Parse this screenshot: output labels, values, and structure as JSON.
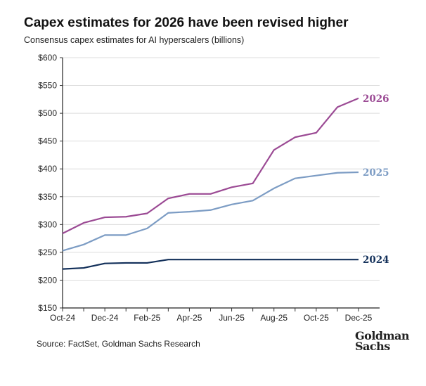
{
  "title": "Capex estimates for 2026 have been revised higher",
  "subtitle": "Consensus capex estimates for AI hyperscalers (billions)",
  "source": "Source: FactSet, Goldman Sachs Research",
  "logo": {
    "line1": "Goldman",
    "line2": "Sachs"
  },
  "chart_data": {
    "type": "line",
    "title": "Capex estimates for 2026 have been revised higher",
    "ylabel": "Consensus capex estimates for AI hyperscalers (billions)",
    "ylim": [
      150,
      600
    ],
    "yticks": [
      150,
      200,
      250,
      300,
      350,
      400,
      450,
      500,
      550,
      600
    ],
    "ytick_labels": [
      "$150",
      "$200",
      "$250",
      "$300",
      "$350",
      "$400",
      "$450",
      "$500",
      "$550",
      "$600"
    ],
    "x": [
      "Oct-24",
      "Nov-24",
      "Dec-24",
      "Jan-25",
      "Feb-25",
      "Mar-25",
      "Apr-25",
      "May-25",
      "Jun-25",
      "Jul-25",
      "Aug-25",
      "Sep-25",
      "Oct-25",
      "Nov-25",
      "Dec-25"
    ],
    "xtick_labels": [
      "Oct-24",
      "Dec-24",
      "Feb-25",
      "Apr-25",
      "Jun-25",
      "Aug-25",
      "Oct-25",
      "Dec-25"
    ],
    "grid": "horizontal",
    "series": [
      {
        "name": "2026",
        "color": "#9b4a94",
        "values": [
          284,
          303,
          313,
          314,
          320,
          347,
          355,
          355,
          367,
          374,
          434,
          457,
          465,
          511,
          527
        ]
      },
      {
        "name": "2025",
        "color": "#7c9cc4",
        "values": [
          253,
          264,
          281,
          281,
          293,
          321,
          323,
          326,
          336,
          343,
          365,
          383,
          388,
          393,
          394
        ]
      },
      {
        "name": "2024",
        "color": "#13305a",
        "values": [
          220,
          222,
          230,
          231,
          231,
          237,
          237,
          237,
          237,
          237,
          237,
          237,
          237,
          237,
          237
        ]
      }
    ]
  }
}
